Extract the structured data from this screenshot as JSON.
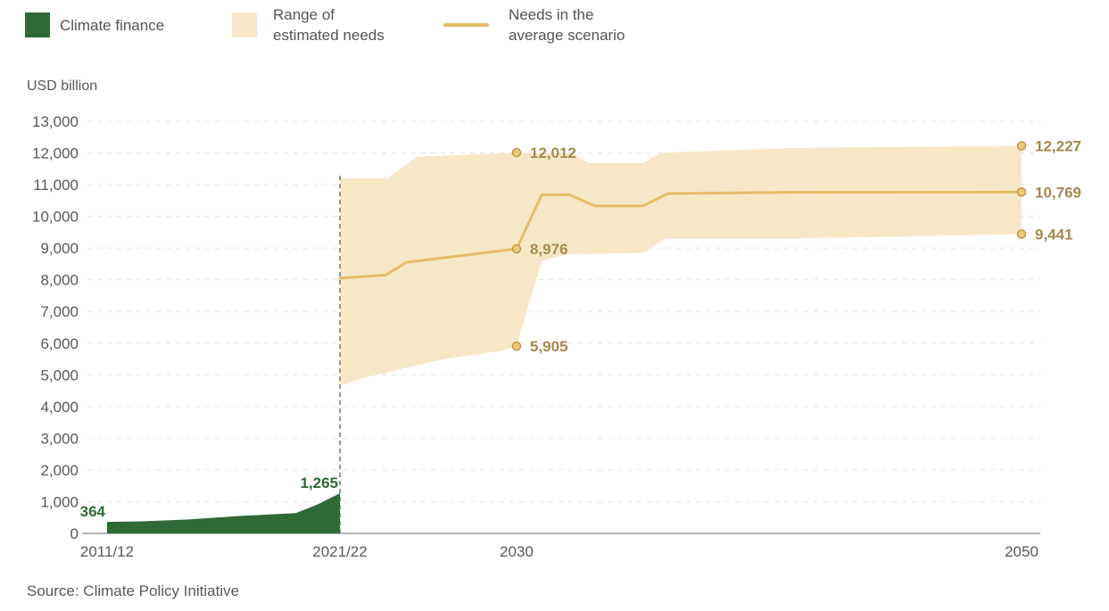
{
  "legend": {
    "items": [
      {
        "id": "climate-finance",
        "label": "Climate finance",
        "swatch": "square",
        "color": "#2f6936"
      },
      {
        "id": "estimated-needs-range",
        "label": "Range of\nestimated needs",
        "swatch": "square",
        "color": "#f6e8c7"
      },
      {
        "id": "average-scenario",
        "label": "Needs in the\naverage scenario",
        "swatch": "line",
        "color": "#e5bc6b"
      }
    ]
  },
  "source": "Source: Climate Policy Initiative",
  "colors": {
    "green": "#2f6936",
    "green_text": "#2e6a34",
    "band": "#f6e8c7",
    "line": "#e5bc6b",
    "marker_fill": "#ecc97d",
    "marker_stroke": "#c49a4b",
    "annotation_text": "#a6894e",
    "axis_text": "#57585a",
    "grid": "#e2e2e2",
    "axis_line": "#9b9b9b",
    "dashed_line": "#7b7b7b"
  },
  "chart_data": {
    "type": "area",
    "title": "",
    "grid": true,
    "legend_position": "top-left",
    "y_axis": {
      "title": "USD billion",
      "min": 0,
      "max": 13000,
      "step": 1000,
      "ticks": [
        {
          "value": 0,
          "label": "0"
        },
        {
          "value": 1000,
          "label": "1,000"
        },
        {
          "value": 2000,
          "label": "2,000"
        },
        {
          "value": 3000,
          "label": "3,000"
        },
        {
          "value": 4000,
          "label": "4,000"
        },
        {
          "value": 5000,
          "label": "5,000"
        },
        {
          "value": 6000,
          "label": "6,000"
        },
        {
          "value": 7000,
          "label": "7,000"
        },
        {
          "value": 8000,
          "label": "8,000"
        },
        {
          "value": 9000,
          "label": "9,000"
        },
        {
          "value": 10000,
          "label": "10,000"
        },
        {
          "value": 11000,
          "label": "11,000"
        },
        {
          "value": 12000,
          "label": "12,000"
        },
        {
          "value": 13000,
          "label": "13,000"
        }
      ]
    },
    "x_axis": {
      "ticks": [
        {
          "year": 2011.5,
          "label": "2011/12"
        },
        {
          "year": 2021.5,
          "label": "2021/22"
        },
        {
          "year": 2030,
          "label": "2030"
        },
        {
          "year": 2050,
          "label": "2050"
        }
      ],
      "divider_year": 2021.5
    },
    "series": [
      {
        "name": "Climate finance",
        "type": "area",
        "color": "#2f6936",
        "points": [
          [
            2011.5,
            364
          ],
          [
            2013,
            380
          ],
          [
            2015,
            440
          ],
          [
            2017,
            540
          ],
          [
            2019.6,
            640
          ],
          [
            2020.5,
            900
          ],
          [
            2021.5,
            1265
          ]
        ]
      },
      {
        "name": "Range of estimated needs",
        "type": "band",
        "color": "#f6e8c7",
        "upper": [
          [
            2021.5,
            11200
          ],
          [
            2023.8,
            11200
          ],
          [
            2025.2,
            11880
          ],
          [
            2030,
            12012
          ],
          [
            2032.2,
            11980
          ],
          [
            2032.9,
            11680
          ],
          [
            2035,
            11680
          ],
          [
            2035.7,
            12010
          ],
          [
            2041,
            12160
          ],
          [
            2050,
            12227
          ]
        ],
        "lower": [
          [
            2021.5,
            4650
          ],
          [
            2022.6,
            4900
          ],
          [
            2026.5,
            5500
          ],
          [
            2029.3,
            5760
          ],
          [
            2030,
            5905
          ],
          [
            2031,
            8600
          ],
          [
            2032,
            8800
          ],
          [
            2035,
            8850
          ],
          [
            2035.9,
            9300
          ],
          [
            2041,
            9300
          ],
          [
            2050,
            9441
          ]
        ]
      },
      {
        "name": "Needs in the average scenario",
        "type": "line",
        "color": "#e5bc6b",
        "points": [
          [
            2021.5,
            8050
          ],
          [
            2023.7,
            8150
          ],
          [
            2024.7,
            8550
          ],
          [
            2030,
            8976
          ],
          [
            2031,
            10680
          ],
          [
            2032.1,
            10680
          ],
          [
            2033.1,
            10330
          ],
          [
            2035,
            10330
          ],
          [
            2036,
            10720
          ],
          [
            2041,
            10760
          ],
          [
            2050,
            10769
          ]
        ]
      }
    ],
    "annotations": [
      {
        "label": "364",
        "year": 2011.5,
        "value": 364,
        "style": "green"
      },
      {
        "label": "1,265",
        "year": 2021.5,
        "value": 1265,
        "style": "green"
      },
      {
        "label": "12,012",
        "year": 2030,
        "value": 12012,
        "style": "tan"
      },
      {
        "label": "8,976",
        "year": 2030,
        "value": 8976,
        "style": "tan"
      },
      {
        "label": "5,905",
        "year": 2030,
        "value": 5905,
        "style": "tan"
      },
      {
        "label": "12,227",
        "year": 2050,
        "value": 12227,
        "style": "tan"
      },
      {
        "label": "10,769",
        "year": 2050,
        "value": 10769,
        "style": "tan"
      },
      {
        "label": "9,441",
        "year": 2050,
        "value": 9441,
        "style": "tan"
      }
    ]
  }
}
